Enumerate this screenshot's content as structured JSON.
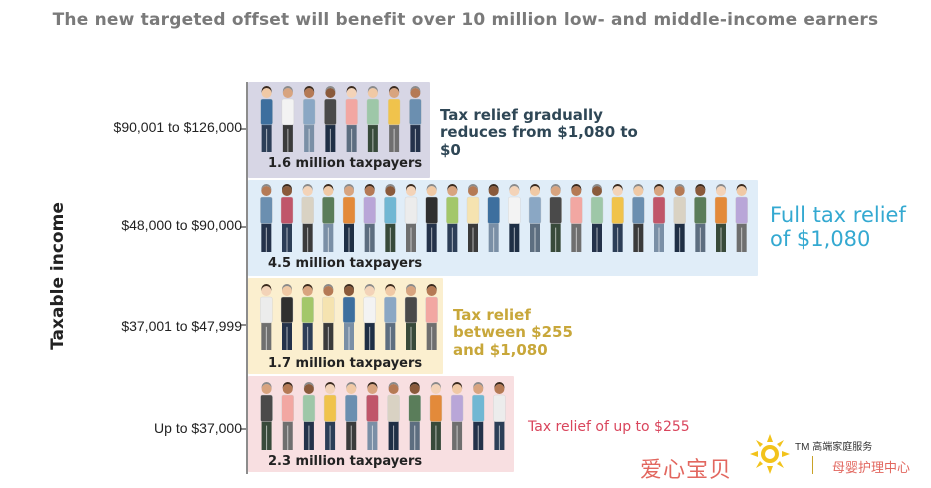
{
  "chart_data": {
    "type": "bar",
    "title": "The new targeted offset will benefit over 10 million low- and middle-income earners",
    "ylabel": "Taxable income",
    "categories": [
      "$90,001 to $126,000",
      "$48,000 to $90,000",
      "$37,001 to $47,999",
      "Up to $37,000"
    ],
    "values_millions": [
      1.6,
      4.5,
      1.7,
      2.3
    ],
    "count_labels": [
      "1.6 million taxpayers",
      "4.5 million taxpayers",
      "1.7 million taxpayers",
      "2.3 million taxpayers"
    ],
    "relief_labels": [
      "Tax relief gradually reduces from $1,080 to $0",
      "Full tax relief of $1,080",
      "Tax relief between $255 and $1,080",
      "Tax relief of up to $255"
    ],
    "band_colors": [
      "#d7d6e5",
      "#e0edf8",
      "#fbefcf",
      "#f8dfe1"
    ],
    "relief_colors": [
      "#2f4756",
      "#34a9d1",
      "#c8a73a",
      "#d9455c"
    ]
  },
  "watermark": {
    "brand_text": "爱心宝贝",
    "tm_text": "TM 高端家庭服务",
    "right_text": "母婴护理中心",
    "logo_icon": "sunburst-logo-icon"
  }
}
